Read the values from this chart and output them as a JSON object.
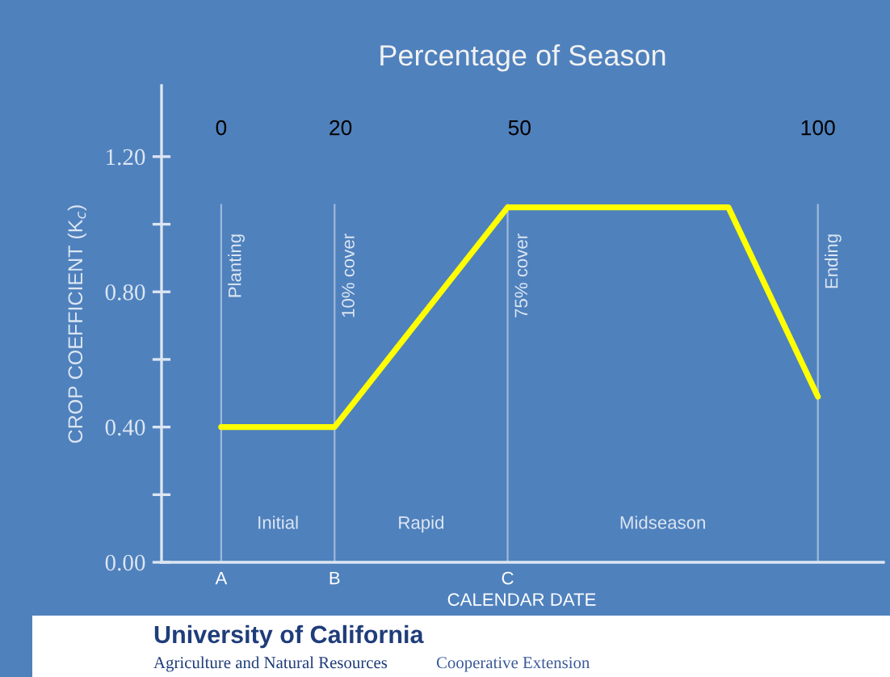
{
  "chart_data": {
    "type": "line",
    "x": [
      0,
      19,
      48,
      85,
      100
    ],
    "values": [
      0.4,
      0.4,
      1.05,
      1.05,
      0.49
    ],
    "color": "#ffff00",
    "xlabel": "Percentage of Season",
    "ylabel": "CROP COEFFICIENT (K$_{c}$)",
    "xlim": [
      -10,
      111
    ],
    "xticks": [
      0,
      20,
      50,
      100
    ],
    "ylim": [
      0,
      1.41
    ],
    "yticks": [
      {
        "value": 0,
        "label": "0.00"
      },
      {
        "value": 0.2,
        "label": null
      },
      {
        "value": 0.4,
        "label": "0.40"
      },
      {
        "value": 0.6,
        "label": null
      },
      {
        "value": 0.8,
        "label": "0.80"
      },
      {
        "value": 1.0,
        "label": null
      },
      {
        "value": 1.2,
        "label": "1.20"
      }
    ],
    "ref_lines": [
      {
        "axis": "x",
        "value": 0,
        "label": "Planting",
        "color": "#9fb8da"
      },
      {
        "axis": "x",
        "value": 19,
        "label": "10% cover",
        "color": "#9fb8da"
      },
      {
        "axis": "x",
        "value": 48,
        "label": "75% cover",
        "color": "#9fb8da"
      },
      {
        "axis": "x",
        "value": 100,
        "label": "Ending",
        "color": "#9fb8da"
      }
    ],
    "annotations": [
      {
        "text": "A",
        "x": 0,
        "y": 0
      },
      {
        "text": "B",
        "x": 19,
        "y": 0
      },
      {
        "text": "C",
        "x": 48,
        "y": 0
      },
      "Initial",
      "Rapid",
      "Midseason",
      "CALENDAR DATE",
      "University of California",
      "Agriculture and Natural Resources",
      "Cooperative Extension"
    ]
  }
}
